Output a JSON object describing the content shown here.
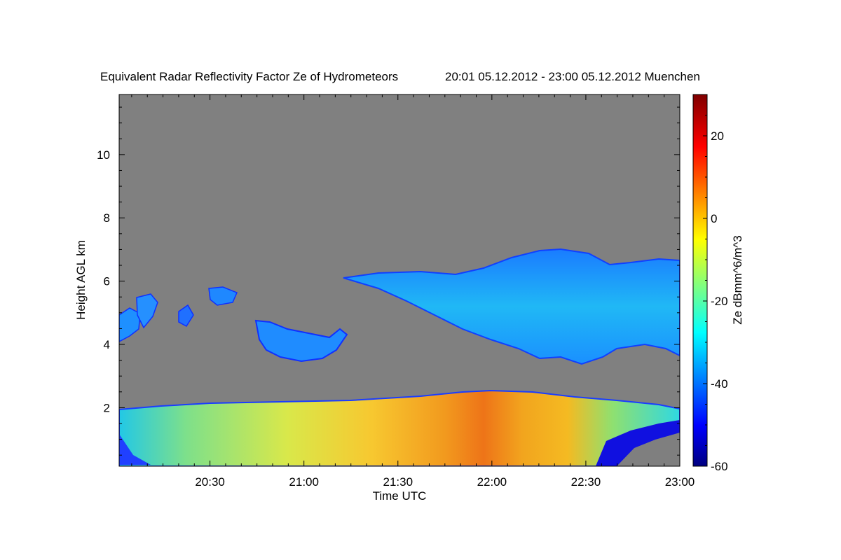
{
  "chart_data": {
    "type": "heatmap",
    "title": "Equivalent Radar Reflectivity Factor Ze of Hydrometeors",
    "subtitle": "20:01 05.12.2012 - 23:00 05.12.2012 Muenchen",
    "xlabel": "Time UTC",
    "ylabel": "Height AGL km",
    "colorbar_label": "Ze dBmm^6/m^3",
    "xlim": [
      "20:01",
      "23:00"
    ],
    "ylim": [
      0.15,
      11.9
    ],
    "x_ticks": [
      "20:30",
      "21:00",
      "21:30",
      "22:00",
      "22:30",
      "23:00"
    ],
    "y_ticks": [
      2,
      4,
      6,
      8,
      10
    ],
    "colorbar_range": [
      -60,
      30
    ],
    "colorbar_ticks": [
      20,
      0,
      -20,
      -40,
      -60
    ],
    "colormap": "jet",
    "background_color": "#808080",
    "regions": [
      {
        "name": "low-level precipitation",
        "time_start": "20:01",
        "time_end": "23:00",
        "height_base_km": 0.15,
        "height_top_km": [
          2.0,
          2.6
        ],
        "ze_dbz_range": [
          -45,
          15
        ]
      },
      {
        "name": "upper cloud layer",
        "time_start": "21:15",
        "time_end": "23:00",
        "height_base_km": 3.4,
        "height_top_km": 7.2,
        "ze_dbz_range": [
          -45,
          -20
        ]
      },
      {
        "name": "cloud patch",
        "time_start": "20:45",
        "time_end": "21:17",
        "height_base_km": 3.4,
        "height_top_km": 4.8,
        "ze_dbz_range": [
          -50,
          -30
        ]
      },
      {
        "name": "cloud fragments",
        "time_start": "20:01",
        "time_end": "20:35",
        "height_base_km": 4.1,
        "height_top_km": 6.0,
        "ze_dbz_range": [
          -50,
          -30
        ]
      }
    ]
  }
}
